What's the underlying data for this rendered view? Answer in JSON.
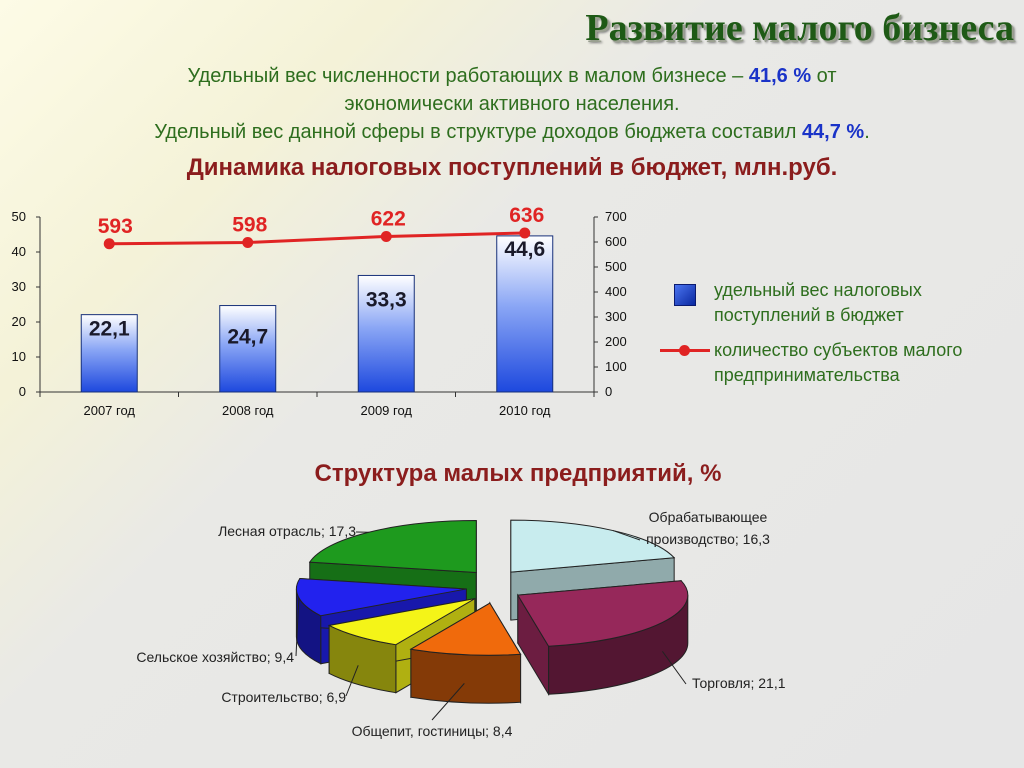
{
  "header": {
    "title": "Развитие малого бизнеса",
    "intro_1a": "Удельный вес численности работающих в малом бизнесе – ",
    "intro_1b": "41,6 %",
    "intro_1c": " от",
    "intro_2": "экономически активного населения.",
    "intro_3a": "Удельный вес данной сферы в структуре доходов бюджета составил ",
    "intro_3b": "44,7 %",
    "intro_3c": "."
  },
  "chart_data": [
    {
      "type": "bar",
      "title": "Динамика налоговых поступлений в бюджет, млн.руб.",
      "categories": [
        "2007 год",
        "2008 год",
        "2009 год",
        "2010 год"
      ],
      "series": [
        {
          "name": "удельный вес налоговых поступлений в бюджет",
          "type": "bar",
          "axis": "left",
          "values": [
            22.1,
            24.7,
            33.3,
            44.6
          ],
          "labels": [
            "22,1",
            "24,7",
            "33,3",
            "44,6"
          ],
          "color": "#2f5ee8"
        },
        {
          "name": "количество субъектов малого предпринимательства",
          "type": "line",
          "axis": "right",
          "values": [
            593,
            598,
            622,
            636
          ],
          "labels": [
            "593",
            "598",
            "622",
            "636"
          ],
          "color": "#e02424"
        }
      ],
      "y_left": {
        "range": [
          0,
          50
        ],
        "ticks": [
          "0",
          "10",
          "20",
          "30",
          "40",
          "50"
        ]
      },
      "y_right": {
        "range": [
          0,
          700
        ],
        "ticks": [
          "0",
          "100",
          "200",
          "300",
          "400",
          "500",
          "600",
          "700"
        ]
      },
      "legend": "right",
      "grid": false
    },
    {
      "type": "pie",
      "title": "Структура  малых  предприятий, %",
      "slices": [
        {
          "name": "Обрабатывающее производство",
          "value": 16.3,
          "label_1": "Обрабатывающее",
          "label_2": "производство; 16,3",
          "color": "#c8ecee"
        },
        {
          "name": "Торговля",
          "value": 21.1,
          "label_1": "Торговля; 21,1",
          "color": "#96285a"
        },
        {
          "name": "Общепит, гостиницы",
          "value": 8.4,
          "label_1": "Общепит, гостиницы; 8,4",
          "color": "#f06a0c"
        },
        {
          "name": "Строительство",
          "value": 6.9,
          "label_1": "Строительство; 6,9",
          "color": "#f4f418"
        },
        {
          "name": "Сельское хозяйство",
          "value": 9.4,
          "label_1": "Сельское хозяйство; 9,4",
          "color": "#2222ee"
        },
        {
          "name": "Лесная отрасль",
          "value": 17.3,
          "label_1": "Лесная отрасль; 17,3",
          "color": "#1e9a1e"
        }
      ]
    }
  ]
}
